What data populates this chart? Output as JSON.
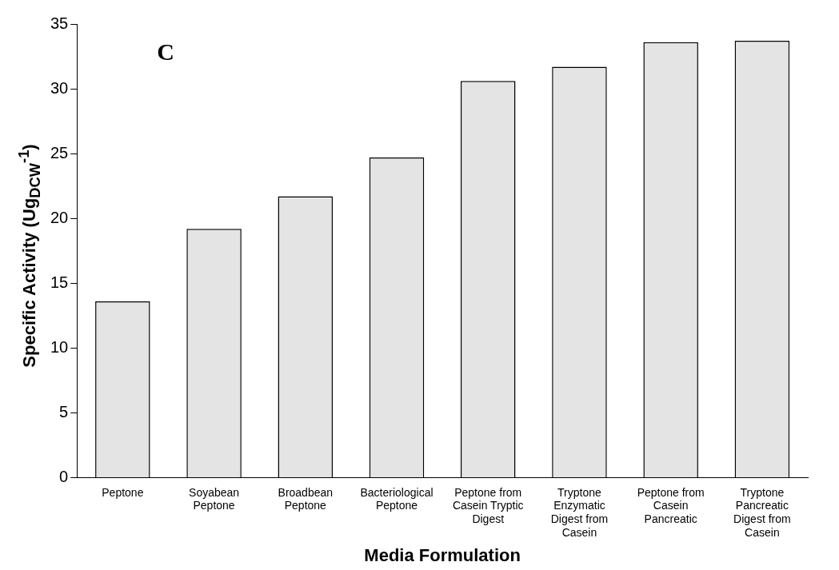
{
  "chart_data": {
    "type": "bar",
    "xlabel": "Media Formulation",
    "ylabel": "Specific Activity (Ug$_{DCW}$$^{-1}$)",
    "categories": [
      "Peptone",
      "Soyabean Peptone",
      "Broadbean Peptone",
      "Bacteriological Peptone",
      "Peptone from Casein Tryptic Digest",
      "Tryptone Enzymatic Digest from Casein",
      "Peptone from Casein Pancreatic",
      "Tryptone Pancreatic Digest from Casein"
    ],
    "values": [
      13.6,
      19.2,
      21.7,
      24.7,
      30.6,
      31.7,
      33.6,
      33.7
    ],
    "color": "#e4e4e4",
    "ylim": [
      0,
      35
    ],
    "yticks": [
      0,
      5,
      10,
      15,
      20,
      25,
      30,
      35
    ],
    "grid": false,
    "legend": false,
    "annotations": [
      "C"
    ]
  }
}
